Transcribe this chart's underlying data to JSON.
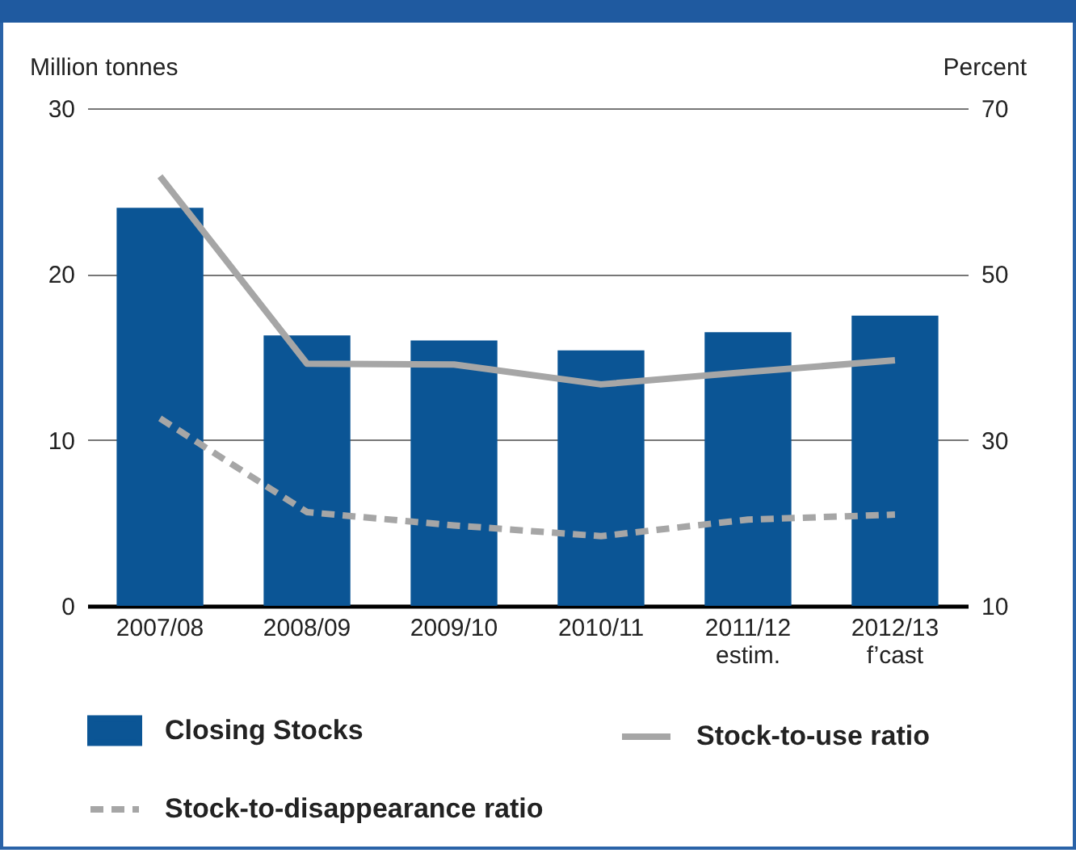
{
  "chart_data": {
    "type": "bar",
    "ylabel": "Million tonnes",
    "y2label": "Percent",
    "categories": [
      "2007/08",
      "2008/09",
      "2009/10",
      "2010/11",
      "2011/12\nestim.",
      "2012/13\nf’cast"
    ],
    "series": [
      {
        "name": "Closing Stocks",
        "color": "#0b5595",
        "values": [
          24.0,
          16.3,
          16.0,
          15.4,
          16.5,
          17.5
        ]
      },
      {
        "name": "Stock-to-use ratio",
        "type": "line",
        "axis": "y2",
        "color": "#a6a6a6",
        "line_style": "solid",
        "values": [
          61.8,
          39.2,
          39.1,
          36.7,
          38.2,
          39.6
        ]
      },
      {
        "name": "Stock-to-disappearance ratio",
        "type": "line",
        "axis": "y2",
        "color": "#a6a6a6",
        "line_style": "dashed",
        "values": [
          32.6,
          21.3,
          19.7,
          18.4,
          20.4,
          21.0
        ]
      }
    ],
    "ylim": [
      0,
      30
    ],
    "yticks": [
      0,
      10,
      20,
      30
    ],
    "y2lim": [
      10,
      70
    ],
    "y2ticks": [
      10,
      30,
      50,
      70
    ],
    "grid": "y",
    "legend": "bottom",
    "marker": "none"
  }
}
